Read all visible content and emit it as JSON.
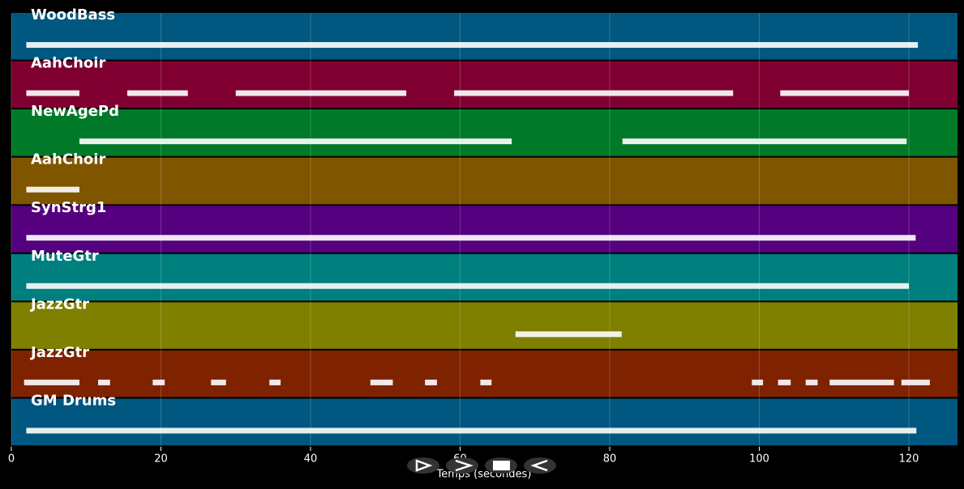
{
  "chart_data": {
    "type": "timeline",
    "xlabel": "Temps (secondes)",
    "xlim": [
      0,
      126.5
    ],
    "xticks": [
      0,
      20,
      40,
      60,
      80,
      100,
      120
    ],
    "grid": true,
    "series": [
      {
        "name": "WoodBass",
        "color": "#00577f",
        "segments": [
          [
            2,
            121.2
          ]
        ]
      },
      {
        "name": "AahChoir",
        "color": "#7f0030",
        "segments": [
          [
            2,
            9.1
          ],
          [
            15.5,
            23.6
          ],
          [
            30,
            52.8
          ],
          [
            59.2,
            96.5
          ],
          [
            102.8,
            120
          ]
        ]
      },
      {
        "name": "NewAgePd",
        "color": "#007a28",
        "segments": [
          [
            9.1,
            66.9
          ],
          [
            81.7,
            119.7
          ]
        ]
      },
      {
        "name": "AahChoir",
        "color": "#7f5500",
        "segments": [
          [
            2,
            9.1
          ]
        ]
      },
      {
        "name": "SynStrg1",
        "color": "#55007f",
        "segments": [
          [
            2,
            120.9
          ]
        ]
      },
      {
        "name": "MuteGtr",
        "color": "#007f7f",
        "segments": [
          [
            2,
            120
          ]
        ]
      },
      {
        "name": "JazzGtr",
        "color": "#7f7f00",
        "segments": [
          [
            67.4,
            81.6
          ]
        ]
      },
      {
        "name": "JazzGtr",
        "color": "#7f2200",
        "segments": [
          [
            1.7,
            9.1
          ],
          [
            11.6,
            13.2
          ],
          [
            18.9,
            20.5
          ],
          [
            26.7,
            28.7
          ],
          [
            34.5,
            36
          ],
          [
            48,
            51
          ],
          [
            55.3,
            56.9
          ],
          [
            62.7,
            64.2
          ],
          [
            99,
            100.5
          ],
          [
            102.5,
            104.2
          ],
          [
            106.2,
            107.8
          ],
          [
            109.4,
            118
          ],
          [
            119,
            122.8
          ]
        ]
      },
      {
        "name": "GM Drums",
        "color": "#00577f",
        "segments": [
          [
            2,
            121
          ]
        ]
      }
    ]
  }
}
